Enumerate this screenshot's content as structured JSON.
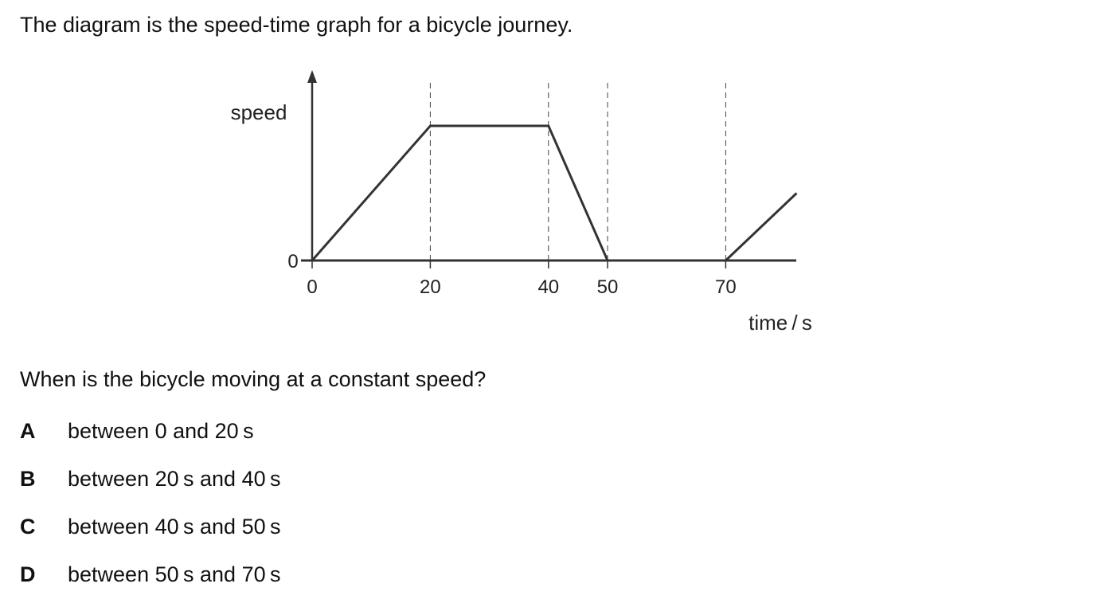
{
  "intro": "The diagram is the speed-time graph for a bicycle journey.",
  "question": "When is the bicycle moving at a constant speed?",
  "options": [
    {
      "letter": "A",
      "text": "between 0 and 20 s"
    },
    {
      "letter": "B",
      "text": "between 20 s and 40 s"
    },
    {
      "letter": "C",
      "text": "between 40 s and 50 s"
    },
    {
      "letter": "D",
      "text": "between 50 s and 70 s"
    }
  ],
  "chart_data": {
    "type": "line",
    "xlabel": "time / s",
    "ylabel": "speed",
    "x_ticks": [
      0,
      20,
      40,
      50,
      70
    ],
    "x_tick_labels": [
      "0",
      "20",
      "40",
      "50",
      "70"
    ],
    "y_ticks": [
      0
    ],
    "y_tick_labels": [
      "0"
    ],
    "xlim": [
      0,
      82
    ],
    "ylim": [
      0,
      1.4
    ],
    "series": [
      {
        "x": [
          0,
          20,
          40,
          50,
          70,
          82
        ],
        "y": [
          0,
          1,
          1,
          0,
          0,
          0.5
        ]
      }
    ],
    "guide_lines_at_x": [
      20,
      40,
      50,
      70
    ],
    "line_color": "#333333",
    "guide_color": "#444444",
    "grid": false
  }
}
